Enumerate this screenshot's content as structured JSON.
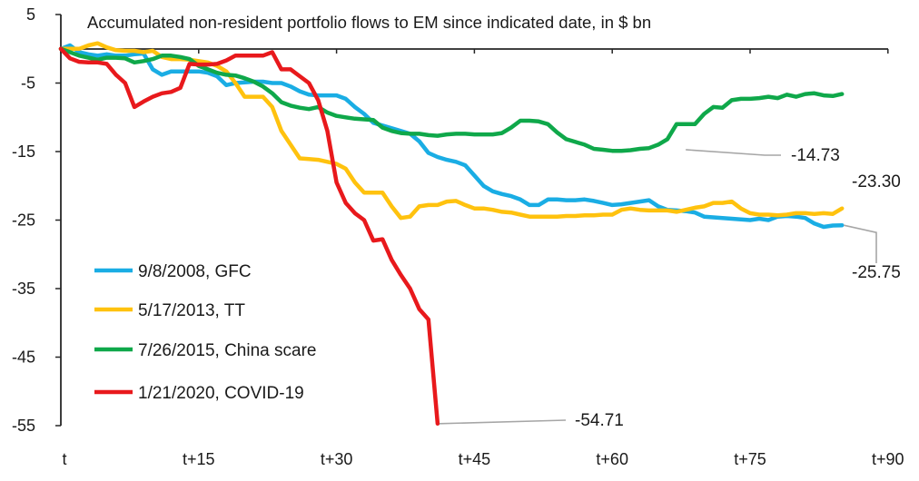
{
  "chart_data": {
    "type": "line",
    "title": "Accumulated non-resident portfolio flows to EM since indicated date, in $ bn",
    "xlabel": "",
    "ylabel": "",
    "ylim": [
      -55,
      5
    ],
    "xlim": [
      0,
      90
    ],
    "yticks": [
      5,
      -5,
      -15,
      -25,
      -35,
      -45,
      -55
    ],
    "xticks": [
      {
        "value": 0,
        "label": "t"
      },
      {
        "value": 15,
        "label": "t+15"
      },
      {
        "value": 30,
        "label": "t+30"
      },
      {
        "value": 45,
        "label": "t+45"
      },
      {
        "value": 60,
        "label": "t+60"
      },
      {
        "value": 75,
        "label": "t+75"
      },
      {
        "value": 90,
        "label": "t+90"
      }
    ],
    "legend_position": "bottom-left",
    "series": [
      {
        "name": "9/8/2008, GFC",
        "color": "#1AADE4",
        "points": [
          [
            0,
            0
          ],
          [
            1,
            0.5
          ],
          [
            2,
            -0.5
          ],
          [
            3,
            -0.8
          ],
          [
            4,
            -1
          ],
          [
            5,
            -0.8
          ],
          [
            6,
            -1
          ],
          [
            7,
            -1
          ],
          [
            8,
            -0.8
          ],
          [
            9,
            -0.7
          ],
          [
            10,
            -3
          ],
          [
            11,
            -3.8
          ],
          [
            12,
            -3.3
          ],
          [
            13,
            -3.3
          ],
          [
            14,
            -3.3
          ],
          [
            15,
            -3.3
          ],
          [
            16,
            -3.5
          ],
          [
            17,
            -4
          ],
          [
            18,
            -5.3
          ],
          [
            19,
            -5
          ],
          [
            20,
            -4.9
          ],
          [
            21,
            -4.8
          ],
          [
            22,
            -4.8
          ],
          [
            23,
            -5
          ],
          [
            24,
            -5
          ],
          [
            25,
            -5.5
          ],
          [
            26,
            -6.2
          ],
          [
            27,
            -6.7
          ],
          [
            28,
            -6.8
          ],
          [
            29,
            -6.8
          ],
          [
            30,
            -6.8
          ],
          [
            31,
            -7.3
          ],
          [
            32,
            -8.5
          ],
          [
            33,
            -9.5
          ],
          [
            34,
            -10.8
          ],
          [
            35,
            -11.2
          ],
          [
            36,
            -11.6
          ],
          [
            37,
            -12
          ],
          [
            38,
            -12.4
          ],
          [
            39,
            -13.5
          ],
          [
            40,
            -15.2
          ],
          [
            41,
            -15.8
          ],
          [
            42,
            -16.2
          ],
          [
            43,
            -16.5
          ],
          [
            44,
            -17
          ],
          [
            45,
            -18.5
          ],
          [
            46,
            -20
          ],
          [
            47,
            -20.8
          ],
          [
            48,
            -21.2
          ],
          [
            49,
            -21.5
          ],
          [
            50,
            -22
          ],
          [
            51,
            -22.8
          ],
          [
            52,
            -22.8
          ],
          [
            53,
            -22
          ],
          [
            54,
            -22
          ],
          [
            55,
            -22.1
          ],
          [
            56,
            -22.1
          ],
          [
            57,
            -22
          ],
          [
            58,
            -22.2
          ],
          [
            59,
            -22.5
          ],
          [
            60,
            -22.8
          ],
          [
            61,
            -22.7
          ],
          [
            62,
            -22.5
          ],
          [
            63,
            -22.3
          ],
          [
            64,
            -22.1
          ],
          [
            65,
            -23
          ],
          [
            66,
            -23.5
          ],
          [
            67,
            -23.6
          ],
          [
            68,
            -23.7
          ],
          [
            69,
            -23.9
          ],
          [
            70,
            -24.5
          ],
          [
            71,
            -24.6
          ],
          [
            72,
            -24.7
          ],
          [
            73,
            -24.8
          ],
          [
            74,
            -24.9
          ],
          [
            75,
            -25
          ],
          [
            76,
            -24.8
          ],
          [
            77,
            -25
          ],
          [
            78,
            -24.5
          ],
          [
            79,
            -24.4
          ],
          [
            80,
            -24.5
          ],
          [
            81,
            -24.7
          ],
          [
            82,
            -25.5
          ],
          [
            83,
            -26
          ],
          [
            84,
            -25.8
          ],
          [
            85,
            -25.75
          ]
        ]
      },
      {
        "name": "5/17/2013, TT",
        "color": "#FFC20E",
        "points": [
          [
            0,
            0
          ],
          [
            1,
            0
          ],
          [
            2,
            0
          ],
          [
            3,
            0.5
          ],
          [
            4,
            0.8
          ],
          [
            5,
            0.2
          ],
          [
            6,
            -0.2
          ],
          [
            7,
            -0.3
          ],
          [
            8,
            -0.3
          ],
          [
            9,
            -0.5
          ],
          [
            10,
            -0.3
          ],
          [
            11,
            -1.2
          ],
          [
            12,
            -1.5
          ],
          [
            13,
            -1.5
          ],
          [
            14,
            -1.6
          ],
          [
            15,
            -1.8
          ],
          [
            16,
            -2
          ],
          [
            17,
            -2.5
          ],
          [
            18,
            -3.3
          ],
          [
            19,
            -5
          ],
          [
            20,
            -7
          ],
          [
            21,
            -7
          ],
          [
            22,
            -7
          ],
          [
            23,
            -8.5
          ],
          [
            24,
            -12
          ],
          [
            25,
            -14
          ],
          [
            26,
            -16
          ],
          [
            27,
            -16.1
          ],
          [
            28,
            -16.2
          ],
          [
            29,
            -16.5
          ],
          [
            30,
            -16.8
          ],
          [
            31,
            -17.5
          ],
          [
            32,
            -19.5
          ],
          [
            33,
            -21
          ],
          [
            34,
            -21
          ],
          [
            35,
            -21
          ],
          [
            36,
            -23
          ],
          [
            37,
            -24.7
          ],
          [
            38,
            -24.5
          ],
          [
            39,
            -23
          ],
          [
            40,
            -22.8
          ],
          [
            41,
            -22.8
          ],
          [
            42,
            -22.3
          ],
          [
            43,
            -22.2
          ],
          [
            44,
            -22.8
          ],
          [
            45,
            -23.3
          ],
          [
            46,
            -23.3
          ],
          [
            47,
            -23.5
          ],
          [
            48,
            -23.8
          ],
          [
            49,
            -23.9
          ],
          [
            50,
            -24.2
          ],
          [
            51,
            -24.5
          ],
          [
            52,
            -24.5
          ],
          [
            53,
            -24.5
          ],
          [
            54,
            -24.5
          ],
          [
            55,
            -24.4
          ],
          [
            56,
            -24.4
          ],
          [
            57,
            -24.3
          ],
          [
            58,
            -24.3
          ],
          [
            59,
            -24.2
          ],
          [
            60,
            -24.2
          ],
          [
            61,
            -23.5
          ],
          [
            62,
            -23.3
          ],
          [
            63,
            -23.5
          ],
          [
            64,
            -23.6
          ],
          [
            65,
            -23.6
          ],
          [
            66,
            -23.6
          ],
          [
            67,
            -23.8
          ],
          [
            68,
            -23.5
          ],
          [
            69,
            -23.2
          ],
          [
            70,
            -23
          ],
          [
            71,
            -22.5
          ],
          [
            72,
            -22.5
          ],
          [
            73,
            -22.3
          ],
          [
            74,
            -23.3
          ],
          [
            75,
            -24
          ],
          [
            76,
            -24.2
          ],
          [
            77,
            -24.2
          ],
          [
            78,
            -24.3
          ],
          [
            79,
            -24.2
          ],
          [
            80,
            -24
          ],
          [
            81,
            -24
          ],
          [
            82,
            -24.1
          ],
          [
            83,
            -24
          ],
          [
            84,
            -24.1
          ],
          [
            85,
            -23.3
          ]
        ]
      },
      {
        "name": "7/26/2015, China scare",
        "color": "#0FA84A",
        "points": [
          [
            0,
            0
          ],
          [
            1,
            -0.5
          ],
          [
            2,
            -1
          ],
          [
            3,
            -1.3
          ],
          [
            4,
            -1.6
          ],
          [
            5,
            -1.3
          ],
          [
            6,
            -1.3
          ],
          [
            7,
            -1.4
          ],
          [
            8,
            -2
          ],
          [
            9,
            -1.8
          ],
          [
            10,
            -1.5
          ],
          [
            11,
            -1
          ],
          [
            12,
            -1
          ],
          [
            13,
            -1.2
          ],
          [
            14,
            -1.5
          ],
          [
            15,
            -2.5
          ],
          [
            16,
            -3
          ],
          [
            17,
            -3.5
          ],
          [
            18,
            -3.8
          ],
          [
            19,
            -3.9
          ],
          [
            20,
            -4.3
          ],
          [
            21,
            -4.8
          ],
          [
            22,
            -5.5
          ],
          [
            23,
            -6.5
          ],
          [
            24,
            -7.8
          ],
          [
            25,
            -8.3
          ],
          [
            26,
            -8.6
          ],
          [
            27,
            -8.8
          ],
          [
            28,
            -8.5
          ],
          [
            29,
            -9.3
          ],
          [
            30,
            -9.8
          ],
          [
            31,
            -10
          ],
          [
            32,
            -10.2
          ],
          [
            33,
            -10.3
          ],
          [
            34,
            -10.4
          ],
          [
            35,
            -11.5
          ],
          [
            36,
            -12
          ],
          [
            37,
            -12.3
          ],
          [
            38,
            -12.4
          ],
          [
            39,
            -12.4
          ],
          [
            40,
            -12.6
          ],
          [
            41,
            -12.7
          ],
          [
            42,
            -12.5
          ],
          [
            43,
            -12.4
          ],
          [
            44,
            -12.4
          ],
          [
            45,
            -12.5
          ],
          [
            46,
            -12.5
          ],
          [
            47,
            -12.5
          ],
          [
            48,
            -12.3
          ],
          [
            49,
            -11.5
          ],
          [
            50,
            -10.5
          ],
          [
            51,
            -10.5
          ],
          [
            52,
            -10.6
          ],
          [
            53,
            -11
          ],
          [
            54,
            -12.2
          ],
          [
            55,
            -13.2
          ],
          [
            56,
            -13.6
          ],
          [
            57,
            -14
          ],
          [
            58,
            -14.6
          ],
          [
            59,
            -14.73
          ],
          [
            60,
            -14.9
          ],
          [
            61,
            -14.9
          ],
          [
            62,
            -14.8
          ],
          [
            63,
            -14.6
          ],
          [
            64,
            -14.5
          ],
          [
            65,
            -14
          ],
          [
            66,
            -13.2
          ],
          [
            67,
            -11
          ],
          [
            68,
            -11
          ],
          [
            69,
            -11
          ],
          [
            70,
            -9.5
          ],
          [
            71,
            -8.5
          ],
          [
            72,
            -8.6
          ],
          [
            73,
            -7.5
          ],
          [
            74,
            -7.3
          ],
          [
            75,
            -7.3
          ],
          [
            76,
            -7.2
          ],
          [
            77,
            -7
          ],
          [
            78,
            -7.2
          ],
          [
            79,
            -6.7
          ],
          [
            80,
            -7
          ],
          [
            81,
            -6.6
          ],
          [
            82,
            -6.5
          ],
          [
            83,
            -6.8
          ],
          [
            84,
            -6.9
          ],
          [
            85,
            -6.6
          ]
        ]
      },
      {
        "name": "1/21/2020, COVID-19",
        "color": "#E8191C",
        "points": [
          [
            0,
            0
          ],
          [
            1,
            -1.4
          ],
          [
            2,
            -1.9
          ],
          [
            3,
            -2
          ],
          [
            4,
            -2
          ],
          [
            5,
            -2.2
          ],
          [
            6,
            -3.8
          ],
          [
            7,
            -5
          ],
          [
            8,
            -8.5
          ],
          [
            9,
            -7.7
          ],
          [
            10,
            -7
          ],
          [
            11,
            -6.5
          ],
          [
            12,
            -6.3
          ],
          [
            13,
            -5.7
          ],
          [
            14,
            -2.2
          ],
          [
            15,
            -2.3
          ],
          [
            16,
            -2.3
          ],
          [
            17,
            -2.2
          ],
          [
            18,
            -1.7
          ],
          [
            19,
            -1
          ],
          [
            20,
            -1
          ],
          [
            21,
            -1
          ],
          [
            22,
            -1
          ],
          [
            23,
            -0.5
          ],
          [
            24,
            -3
          ],
          [
            25,
            -3
          ],
          [
            26,
            -4
          ],
          [
            27,
            -5
          ],
          [
            28,
            -7.5
          ],
          [
            29,
            -12
          ],
          [
            30,
            -19.5
          ],
          [
            31,
            -22.5
          ],
          [
            32,
            -24
          ],
          [
            33,
            -25
          ],
          [
            34,
            -28
          ],
          [
            35,
            -27.8
          ],
          [
            36,
            -30.8
          ],
          [
            37,
            -33
          ],
          [
            38,
            -35
          ],
          [
            39,
            -38
          ],
          [
            40,
            -39.5
          ],
          [
            41,
            -54.71
          ]
        ]
      }
    ],
    "annotations": [
      {
        "label": "-14.73",
        "series": "7/26/2015, China scare"
      },
      {
        "label": "-23.30",
        "series": "5/17/2013, TT"
      },
      {
        "label": "-25.75",
        "series": "9/8/2008, GFC"
      },
      {
        "label": "-54.71",
        "series": "1/21/2020, COVID-19"
      }
    ]
  }
}
